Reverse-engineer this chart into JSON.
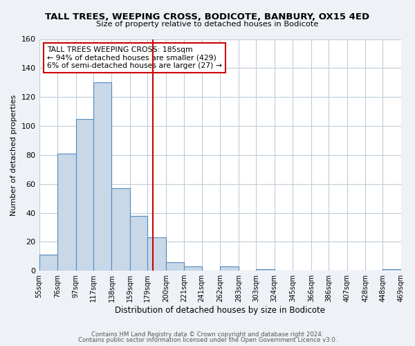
{
  "title": "TALL TREES, WEEPING CROSS, BODICOTE, BANBURY, OX15 4ED",
  "subtitle": "Size of property relative to detached houses in Bodicote",
  "xlabel": "Distribution of detached houses by size in Bodicote",
  "ylabel": "Number of detached properties",
  "bin_labels": [
    "55sqm",
    "76sqm",
    "97sqm",
    "117sqm",
    "138sqm",
    "159sqm",
    "179sqm",
    "200sqm",
    "221sqm",
    "241sqm",
    "262sqm",
    "283sqm",
    "303sqm",
    "324sqm",
    "345sqm",
    "366sqm",
    "386sqm",
    "407sqm",
    "428sqm",
    "448sqm",
    "469sqm"
  ],
  "bin_edges": [
    55,
    76,
    97,
    117,
    138,
    159,
    179,
    200,
    221,
    241,
    262,
    283,
    303,
    324,
    345,
    366,
    386,
    407,
    428,
    448,
    469
  ],
  "bar_heights": [
    11,
    81,
    105,
    130,
    57,
    38,
    23,
    6,
    3,
    0,
    3,
    0,
    1,
    0,
    0,
    0,
    0,
    0,
    0,
    1
  ],
  "bar_color": "#c8d8e8",
  "bar_edge_color": "#5588bb",
  "vline_x": 185,
  "vline_color": "#cc0000",
  "annotation_box_color": "#cc0000",
  "annotation_lines": [
    "TALL TREES WEEPING CROSS: 185sqm",
    "← 94% of detached houses are smaller (429)",
    "6% of semi-detached houses are larger (27) →"
  ],
  "ylim": [
    0,
    160
  ],
  "yticks": [
    0,
    20,
    40,
    60,
    80,
    100,
    120,
    140,
    160
  ],
  "footer_line1": "Contains HM Land Registry data © Crown copyright and database right 2024.",
  "footer_line2": "Contains public sector information licensed under the Open Government Licence v3.0.",
  "background_color": "#eef2f7",
  "plot_background_color": "#ffffff",
  "grid_color": "#c0ccd8"
}
